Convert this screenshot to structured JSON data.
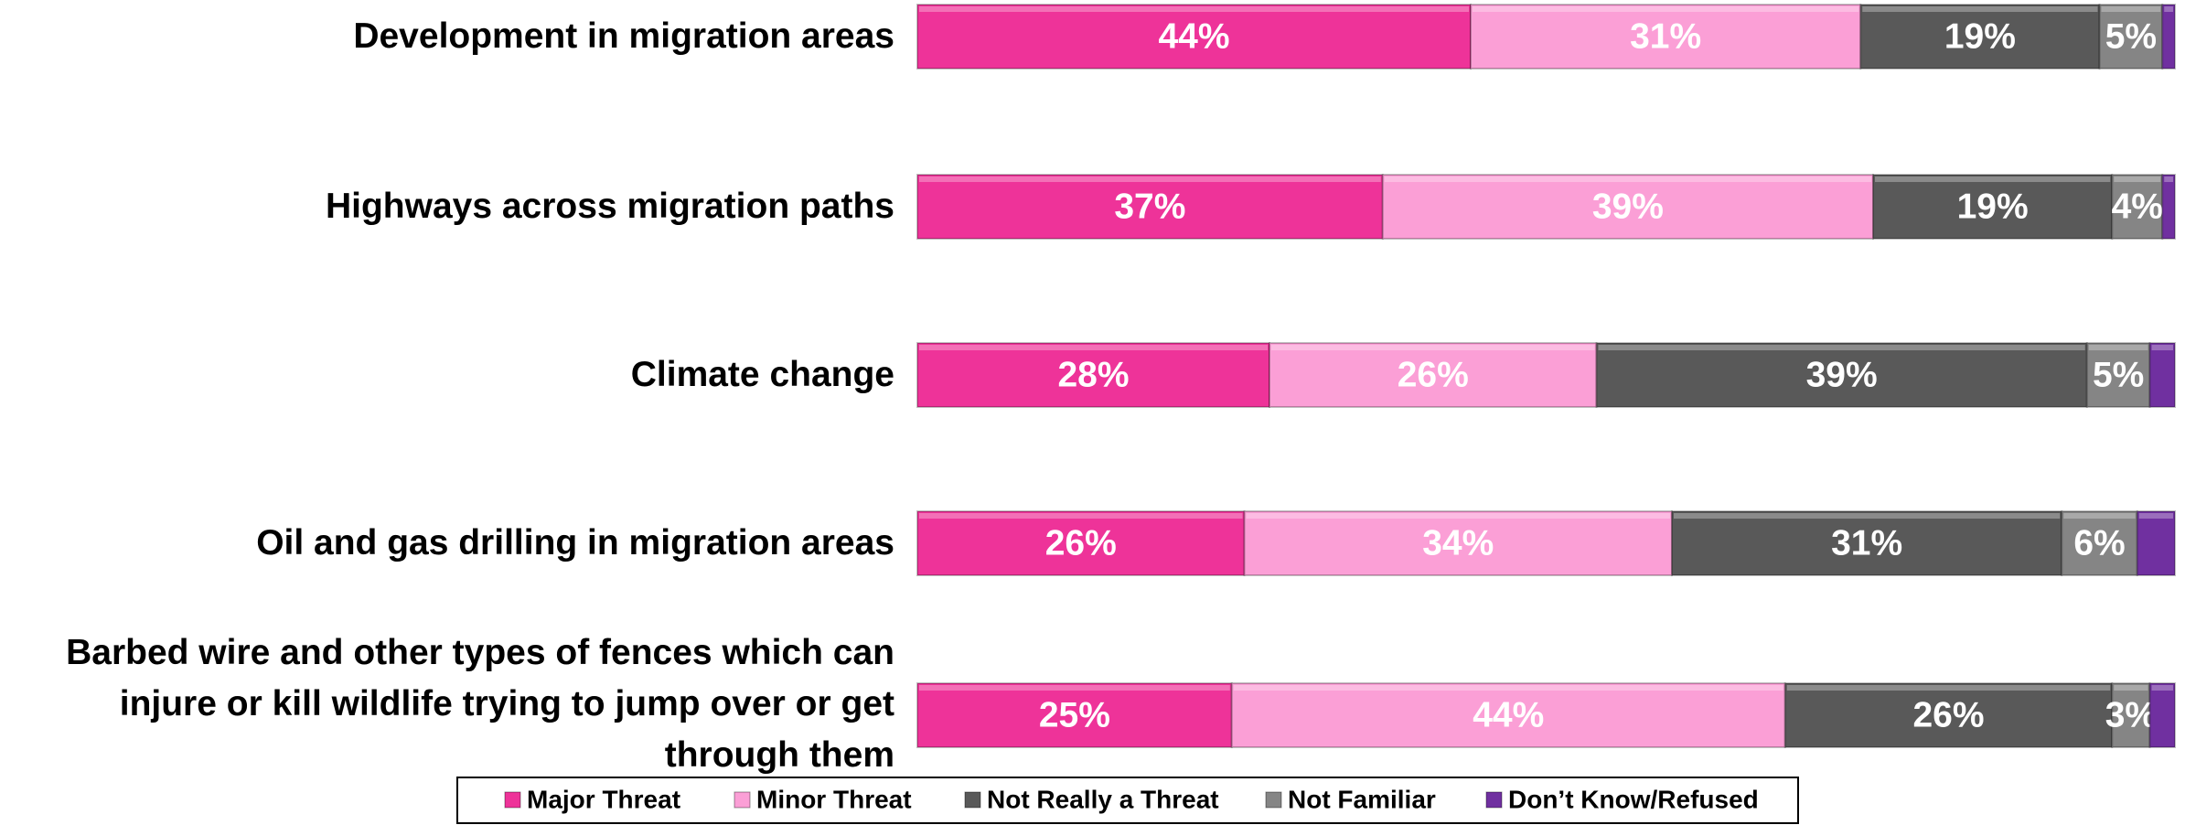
{
  "chart_data": {
    "type": "bar",
    "orientation": "horizontal",
    "stacked": true,
    "categories": [
      "Development in migration areas",
      "Highways across migration paths",
      "Climate change",
      "Oil and gas drilling in migration areas",
      "Barbed wire and other types of fences which can injure or kill wildlife trying to jump over or get through them"
    ],
    "xlim": [
      0,
      100
    ],
    "series": [
      {
        "name": "Major Threat",
        "color": "#ee3399",
        "values": [
          44,
          37,
          28,
          26,
          25
        ],
        "value_labels": [
          "44%",
          "37%",
          "28%",
          "26%",
          "25%"
        ]
      },
      {
        "name": "Minor Threat",
        "color": "#fb9fd6",
        "values": [
          31,
          39,
          26,
          34,
          44
        ],
        "value_labels": [
          "31%",
          "39%",
          "26%",
          "34%",
          "44%"
        ]
      },
      {
        "name": "Not Really a Threat",
        "color": "#595959",
        "values": [
          19,
          19,
          39,
          31,
          26
        ],
        "value_labels": [
          "19%",
          "19%",
          "39%",
          "31%",
          "26%"
        ]
      },
      {
        "name": "Not Familiar",
        "color": "#858585",
        "values": [
          5,
          4,
          5,
          6,
          3
        ],
        "value_labels": [
          "5%",
          "4%",
          "5%",
          "6%",
          "3%"
        ]
      },
      {
        "name": "Don’t Know/Refused",
        "color": "#7030a0",
        "values": [
          1,
          1,
          2,
          3,
          2
        ]
      }
    ],
    "legend": "bottom"
  }
}
